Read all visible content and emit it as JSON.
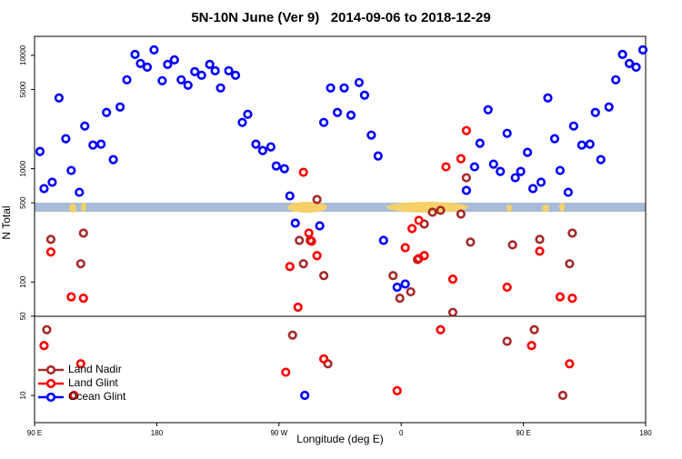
{
  "chart_data": {
    "type": "scatter",
    "title": "5N-10N June (Ver 9)   2014-09-06 to 2018-12-29",
    "xlabel": "Longitude (deg E)",
    "ylabel": "N Total",
    "xlim": [
      90,
      540
    ],
    "xticks": [
      {
        "value": 90,
        "label": "90 E"
      },
      180,
      {
        "value": 270,
        "label": "90 W"
      },
      {
        "value": 360,
        "label": "0"
      },
      {
        "value": 450,
        "label": "90 E"
      },
      {
        "value": 540,
        "label": "180"
      }
    ],
    "ylim": [
      5.75,
      14700
    ],
    "yscale": "log",
    "yticks": [
      10,
      50,
      100,
      500,
      1000,
      5000,
      10000
    ],
    "legend": "lower left",
    "series": [
      {
        "name": "Land Nadir",
        "color": "#a52a2a",
        "x": [
          99,
          102,
          124,
          126,
          280,
          285,
          288,
          293,
          298,
          303,
          306,
          354,
          359,
          367,
          372,
          377,
          383,
          389,
          398,
          404,
          408,
          411,
          438,
          442,
          458,
          462,
          479,
          484,
          486
        ],
        "values": [
          38,
          238,
          145,
          270,
          34,
          233,
          145,
          233,
          535,
          114,
          19,
          114,
          72,
          82,
          158,
          325,
          413,
          429,
          54,
          398,
          832,
          225,
          30,
          213,
          38,
          238,
          10,
          145,
          270
        ]
      },
      {
        "name": "Land Glint",
        "color": "#ff0000",
        "x": [
          97,
          102,
          117,
          126,
          124,
          119,
          275,
          278,
          284,
          288,
          292,
          294,
          298,
          303,
          357,
          363,
          368,
          373,
          373,
          377,
          389,
          393,
          398,
          404,
          408,
          438,
          456,
          462,
          477,
          486,
          484
        ],
        "values": [
          27.5,
          184,
          74,
          72,
          19,
          10,
          16,
          137,
          60,
          929,
          270,
          229,
          171,
          21,
          11,
          201,
          296,
          350,
          161,
          171,
          38,
          1038,
          106,
          1225,
          2168,
          90,
          27.5,
          187,
          74,
          72,
          19
        ]
      },
      {
        "name": "Ocean Glint",
        "color": "#0000ff",
        "x": [
          94,
          97,
          103,
          108,
          113,
          117,
          123,
          127,
          133,
          139,
          143,
          148,
          153,
          158,
          164,
          168,
          173,
          178,
          184,
          188,
          193,
          198,
          203,
          208,
          213,
          219,
          223,
          227,
          233,
          238,
          243,
          247,
          253,
          258,
          264,
          268,
          274,
          278,
          282,
          289,
          300,
          303,
          308,
          313,
          318,
          323,
          329,
          333,
          338,
          343,
          347,
          357,
          363,
          408,
          414,
          418,
          424,
          428,
          433,
          438,
          444,
          448,
          453,
          457,
          463,
          468,
          473,
          477,
          483,
          487,
          493,
          499,
          503,
          507,
          513,
          518,
          523,
          528,
          533,
          538
        ],
        "values": [
          1420,
          667,
          759,
          4207,
          1837,
          964,
          619,
          2377,
          1614,
          1644,
          3133,
          1202,
          3499,
          6081,
          10186,
          8472,
          7870,
          11169,
          5970,
          8318,
          9120,
          6081,
          5445,
          7178,
          6668,
          8318,
          7311,
          5152,
          7311,
          6668,
          2559,
          3020,
          1644,
          1445,
          1556,
          1057,
          1000,
          575,
          331,
          10,
          313,
          2559,
          5152,
          3133,
          5152,
          2965,
          5754,
          4446,
          1977,
          1294,
          233,
          90,
          96,
          643,
          1038,
          1675,
          3311,
          1096,
          946,
          2051,
          832,
          946,
          1393,
          667,
          759,
          4207,
          1837,
          964,
          619,
          2377,
          1614,
          1644,
          3133,
          1202,
          3499,
          6081,
          10186,
          8472,
          7870,
          11169
        ]
      }
    ]
  }
}
